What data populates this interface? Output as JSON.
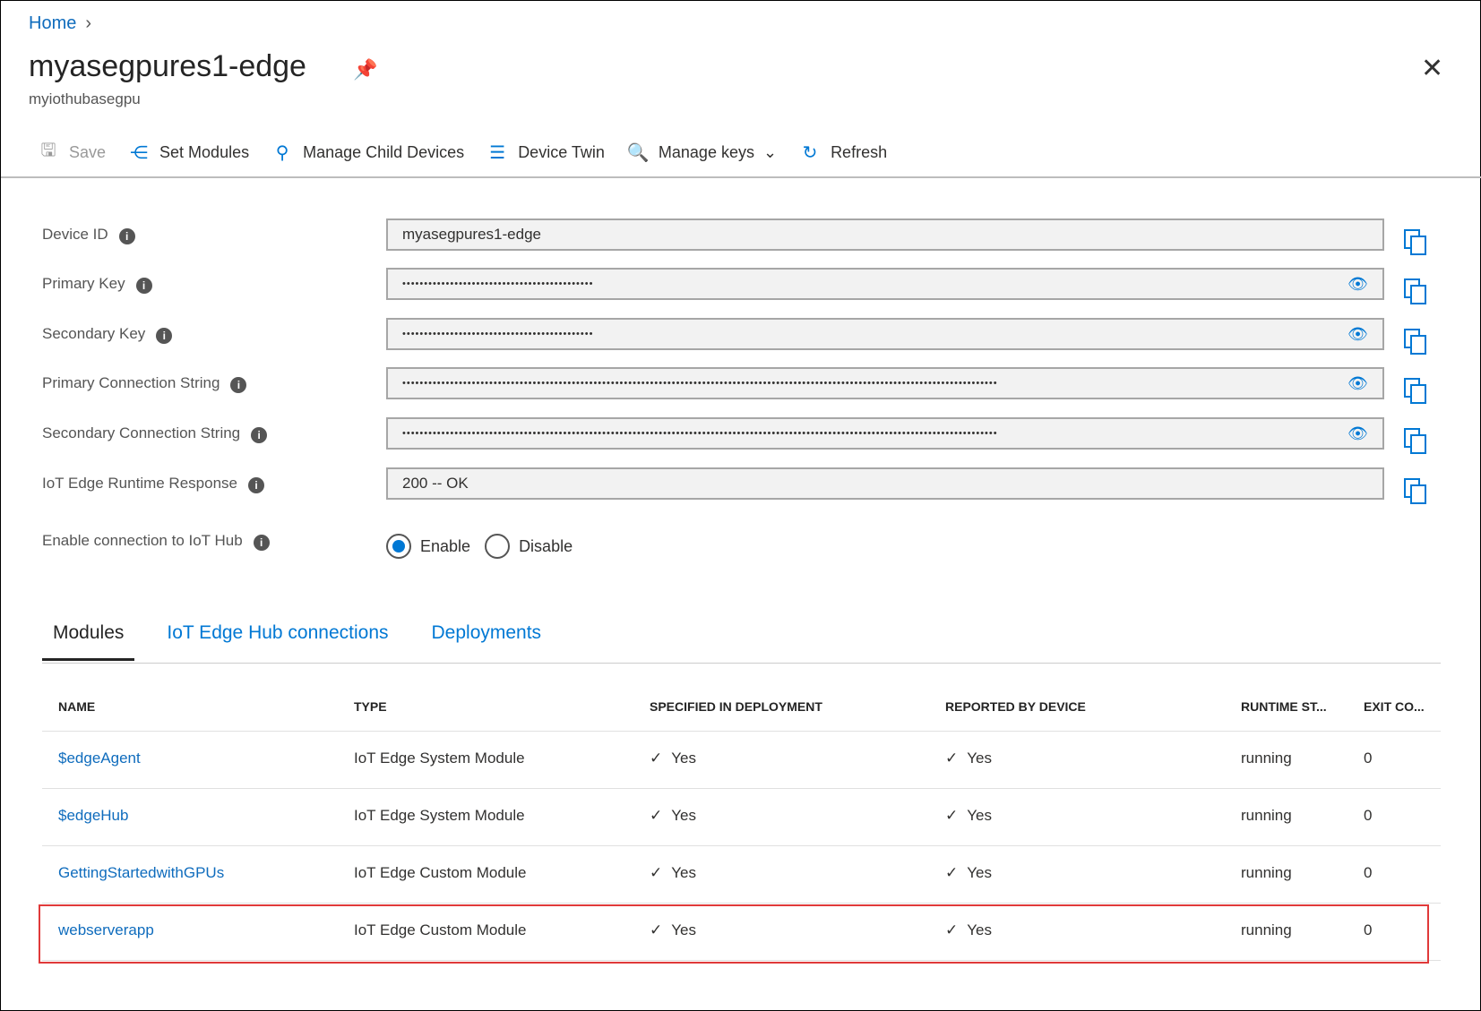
{
  "breadcrumb": {
    "home": "Home"
  },
  "header": {
    "title": "myasegpures1-edge",
    "subtitle": "myiothubasegpu"
  },
  "toolbar": {
    "save": "Save",
    "set_modules": "Set Modules",
    "manage_child": "Manage Child Devices",
    "device_twin": "Device Twin",
    "manage_keys": "Manage keys",
    "refresh": "Refresh"
  },
  "fields": [
    {
      "label": "Device ID",
      "value": "myasegpures1-edge",
      "masked": false
    },
    {
      "label": "Primary Key",
      "value": "••••••••••••••••••••••••••••••••••••••••••••",
      "masked": true
    },
    {
      "label": "Secondary Key",
      "value": "••••••••••••••••••••••••••••••••••••••••••••",
      "masked": true
    },
    {
      "label": "Primary Connection String",
      "value": "•••••••••••••••••••••••••••••••••••••••••••••••••••••••••••••••••••••••••••••••••••••••••••••••••••••••••••••••••••••••••••••••••••••••••",
      "masked": true
    },
    {
      "label": "Secondary Connection String",
      "value": "•••••••••••••••••••••••••••••••••••••••••••••••••••••••••••••••••••••••••••••••••••••••••••••••••••••••••••••••••••••••••••••••••••••••••",
      "masked": true
    },
    {
      "label": "IoT Edge Runtime Response",
      "value": "200 -- OK",
      "masked": false
    }
  ],
  "connection": {
    "label": "Enable connection to IoT Hub",
    "enable": "Enable",
    "disable": "Disable",
    "selected": "Enable"
  },
  "tabs": [
    "Modules",
    "IoT Edge Hub connections",
    "Deployments"
  ],
  "table": {
    "headers": [
      "NAME",
      "TYPE",
      "SPECIFIED IN DEPLOYMENT",
      "REPORTED BY DEVICE",
      "RUNTIME ST...",
      "EXIT CO..."
    ],
    "rows": [
      [
        "$edgeAgent",
        "IoT Edge System Module",
        "Yes",
        "Yes",
        "running",
        "0"
      ],
      [
        "$edgeHub",
        "IoT Edge System Module",
        "Yes",
        "Yes",
        "running",
        "0"
      ],
      [
        "GettingStartedwithGPUs",
        "IoT Edge Custom Module",
        "Yes",
        "Yes",
        "running",
        "0"
      ],
      [
        "webserverapp",
        "IoT Edge Custom Module",
        "Yes",
        "Yes",
        "running",
        "0"
      ]
    ],
    "highlighted_row": "webserverapp"
  },
  "colors": {
    "accent": "#0078d4",
    "highlight": "#e03a3a"
  }
}
